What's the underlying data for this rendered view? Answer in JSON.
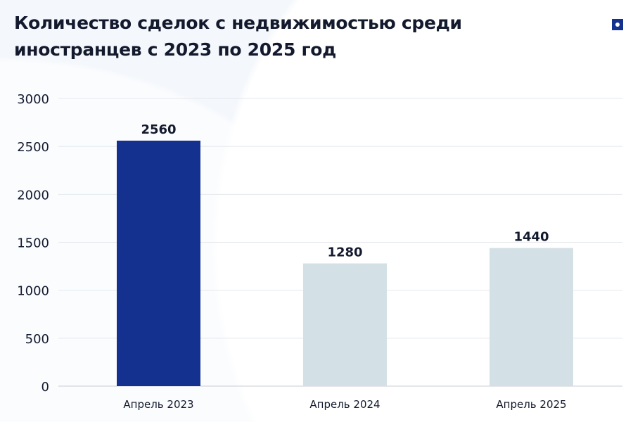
{
  "chart_data": {
    "type": "bar",
    "title": "Количество сделок с недвижимостью среди иностранцев с 2023 по 2025 год",
    "categories": [
      "Апрель 2023",
      "Апрель 2024",
      "Апрель 2025"
    ],
    "values": [
      2560,
      1280,
      1440
    ],
    "data_labels": [
      "2560",
      "1280",
      "1440"
    ],
    "ylim": [
      0,
      3000
    ],
    "yticks": [
      "0",
      "500",
      "1000",
      "1500",
      "2000",
      "2500",
      "3000"
    ],
    "grid": true,
    "bar_colors": [
      "#14318f",
      "#d3e0e5",
      "#d3e0e5"
    ]
  }
}
